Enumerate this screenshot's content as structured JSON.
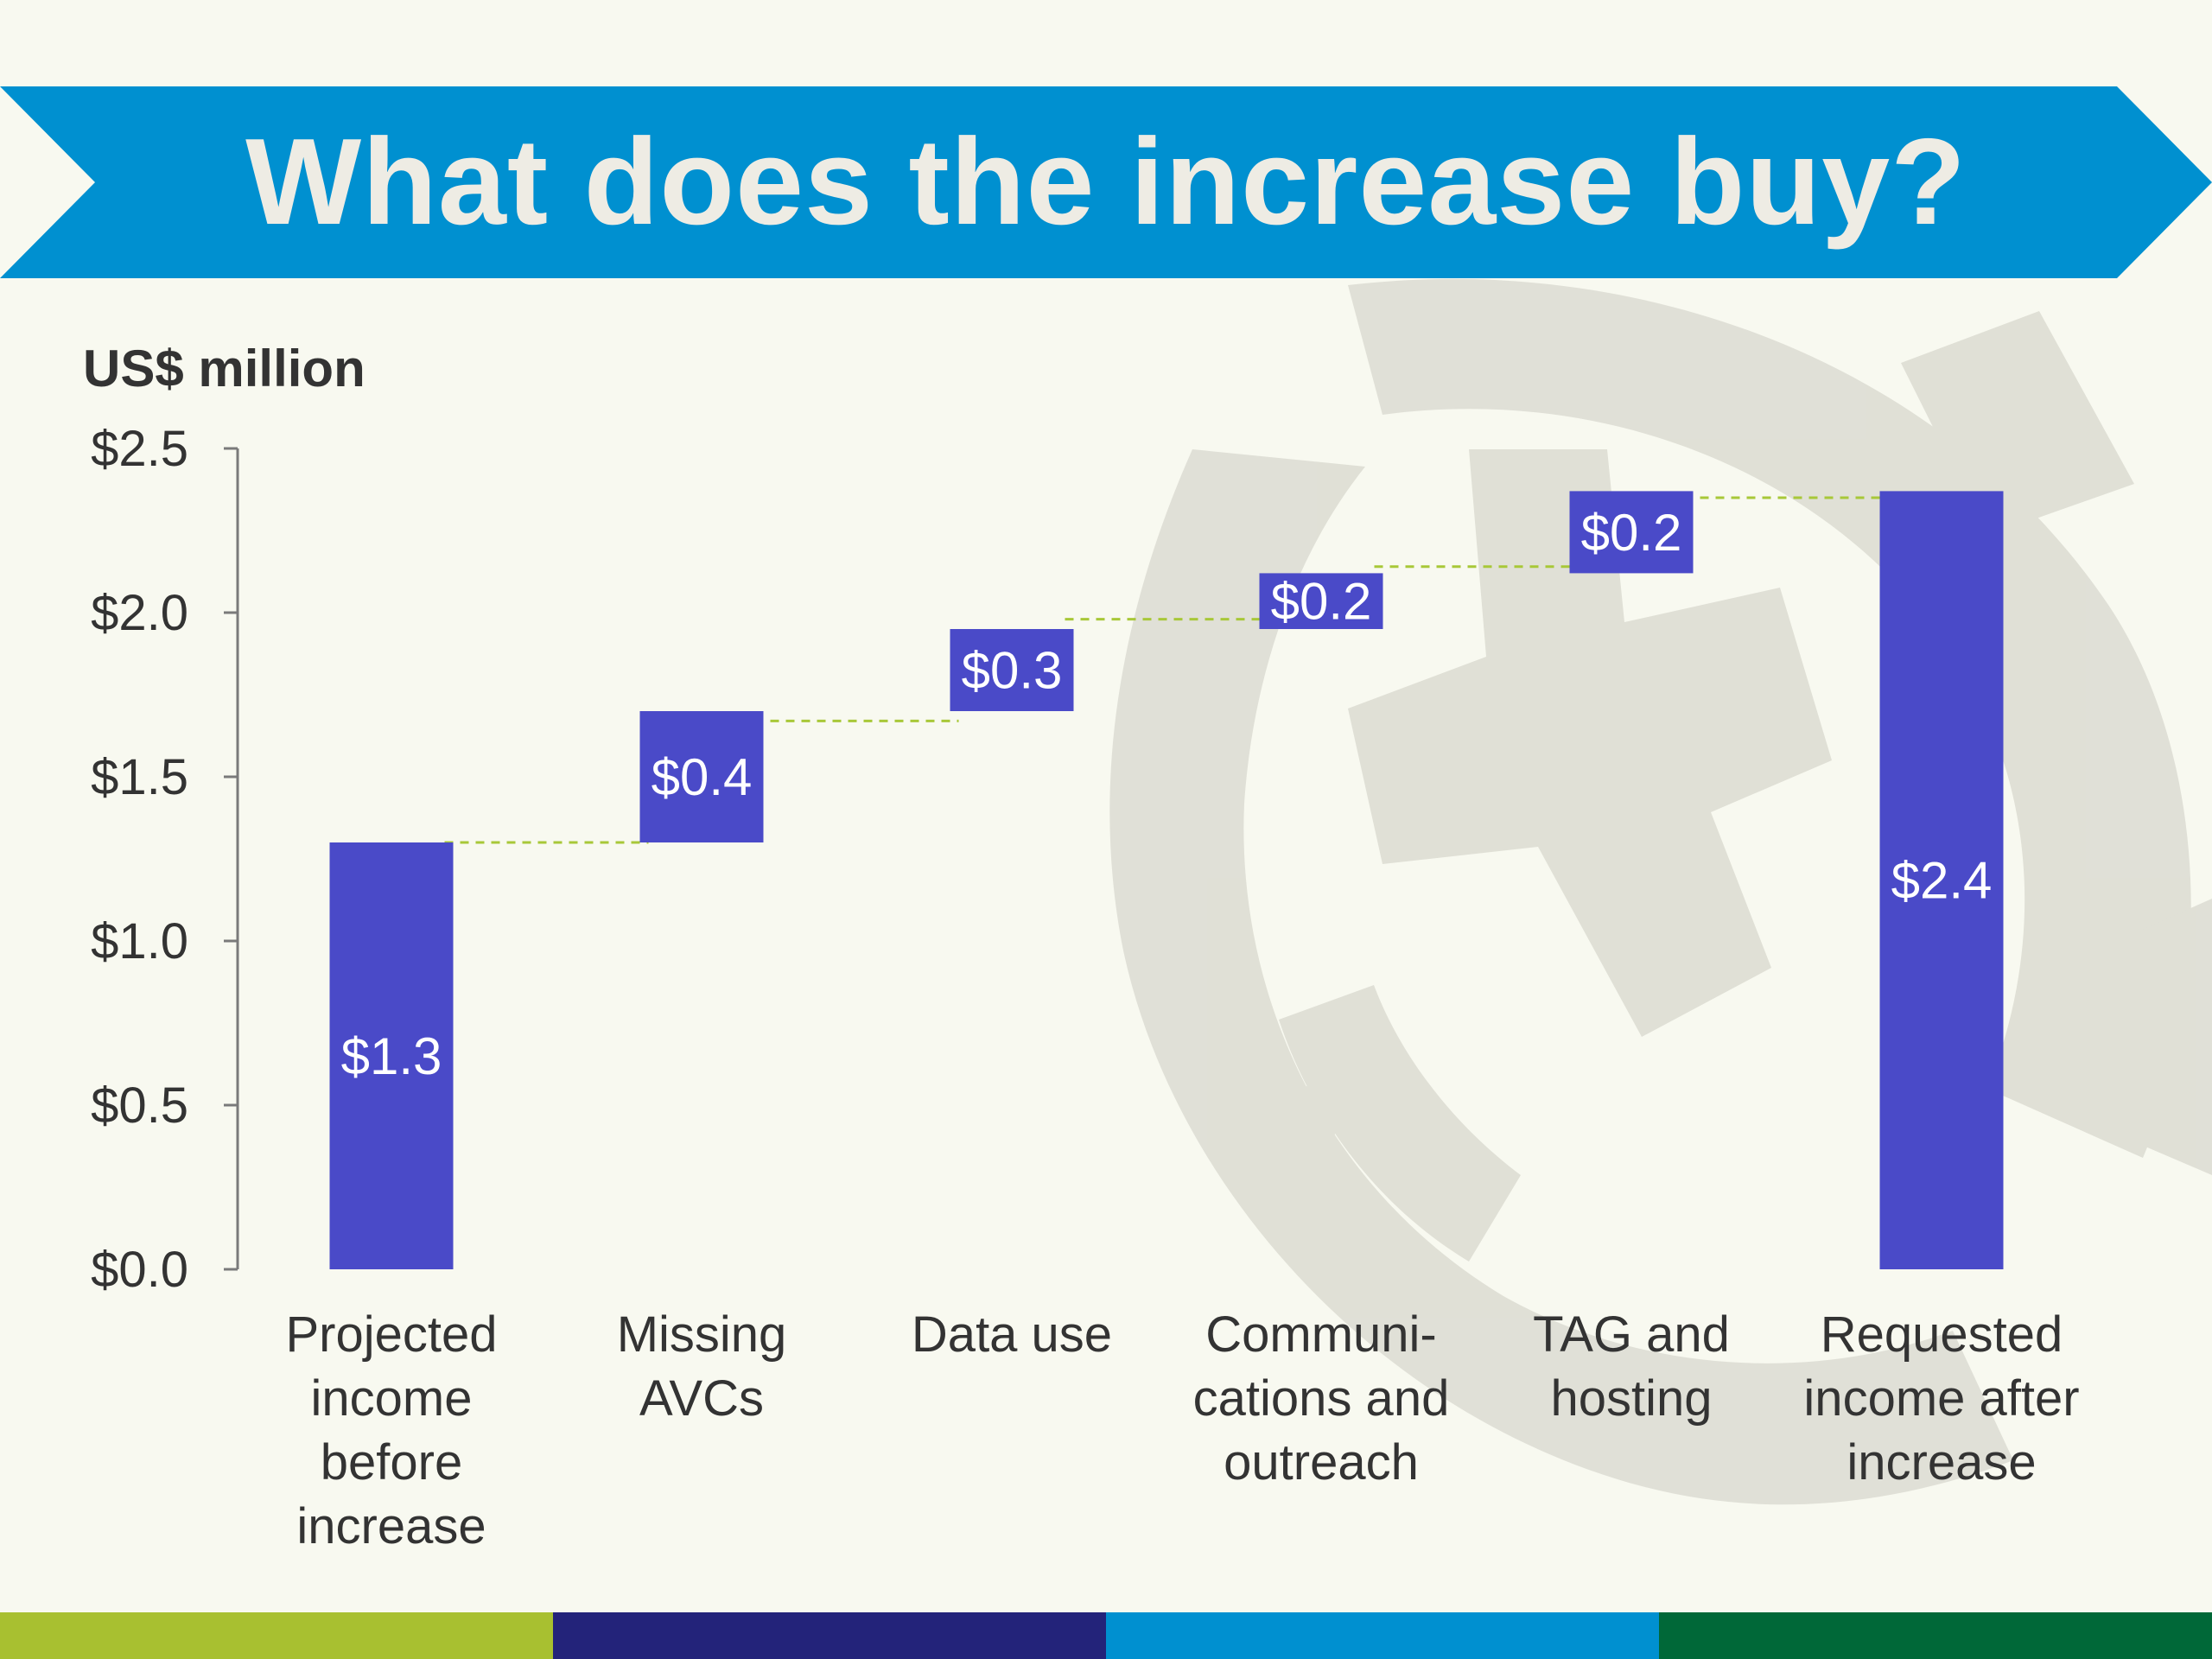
{
  "title": "What does the increase buy?",
  "colors": {
    "background": "#f8f9f0",
    "banner": "#0090d0",
    "bar": "#4a4ac8",
    "connector": "#a8c838",
    "stripes": [
      "#a8c030",
      "#23237a",
      "#0090d0",
      "#006838"
    ]
  },
  "chart_data": {
    "type": "bar",
    "subtype": "waterfall",
    "ylabel": "US$ million",
    "ylim": [
      0,
      2.5
    ],
    "yticks": [
      "$0.0",
      "$0.5",
      "$1.0",
      "$1.5",
      "$2.0",
      "$2.5"
    ],
    "categories": [
      "Projected income before increase",
      "Missing AVCs",
      "Data use",
      "Communi-cations and outreach",
      "TAG and hosting",
      "Requested income after increase"
    ],
    "category_lines": [
      [
        "Projected",
        "income",
        "before",
        "increase"
      ],
      [
        "Missing",
        "AVCs"
      ],
      [
        "Data use"
      ],
      [
        "Communi-",
        "cations and",
        "outreach"
      ],
      [
        "TAG and",
        "hosting"
      ],
      [
        "Requested",
        "income after",
        "increase"
      ]
    ],
    "bars": [
      {
        "base": 0,
        "top": 1.3,
        "label": "$1.3"
      },
      {
        "base": 1.3,
        "top": 1.7,
        "label": "$0.4"
      },
      {
        "base": 1.7,
        "top": 1.95,
        "label": "$0.3"
      },
      {
        "base": 1.95,
        "top": 2.12,
        "label": "$0.2"
      },
      {
        "base": 2.12,
        "top": 2.37,
        "label": "$0.2"
      },
      {
        "base": 0,
        "top": 2.37,
        "label": "$2.4"
      }
    ],
    "connectors": [
      1.3,
      1.67,
      1.98,
      2.14,
      2.35
    ]
  }
}
